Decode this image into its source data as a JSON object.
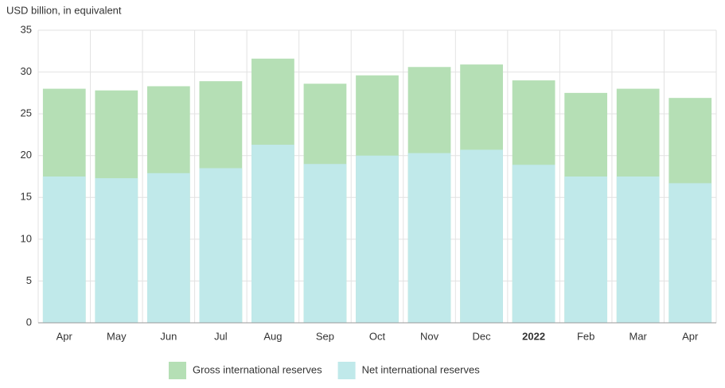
{
  "chart_data": {
    "type": "bar",
    "y_label": "USD billion, in equivalent",
    "categories": [
      "Apr",
      "May",
      "Jun",
      "Jul",
      "Aug",
      "Sep",
      "Oct",
      "Nov",
      "Dec",
      "2022",
      "Feb",
      "Mar",
      "Apr"
    ],
    "series": [
      {
        "name": "Gross international reserves",
        "color": "#b5dfb5",
        "values": [
          28.0,
          27.8,
          28.3,
          28.9,
          31.6,
          28.6,
          29.6,
          30.6,
          30.9,
          29.0,
          27.5,
          28.0,
          26.9
        ]
      },
      {
        "name": "Net international reserves",
        "color": "#c0e9ea",
        "values": [
          17.5,
          17.3,
          17.9,
          18.5,
          21.3,
          19.0,
          20.0,
          20.3,
          20.7,
          18.9,
          17.5,
          17.5,
          16.7
        ]
      }
    ],
    "ylim": [
      0,
      35
    ],
    "yticks": [
      0,
      5,
      10,
      15,
      20,
      25,
      30,
      35
    ],
    "grid": true
  }
}
